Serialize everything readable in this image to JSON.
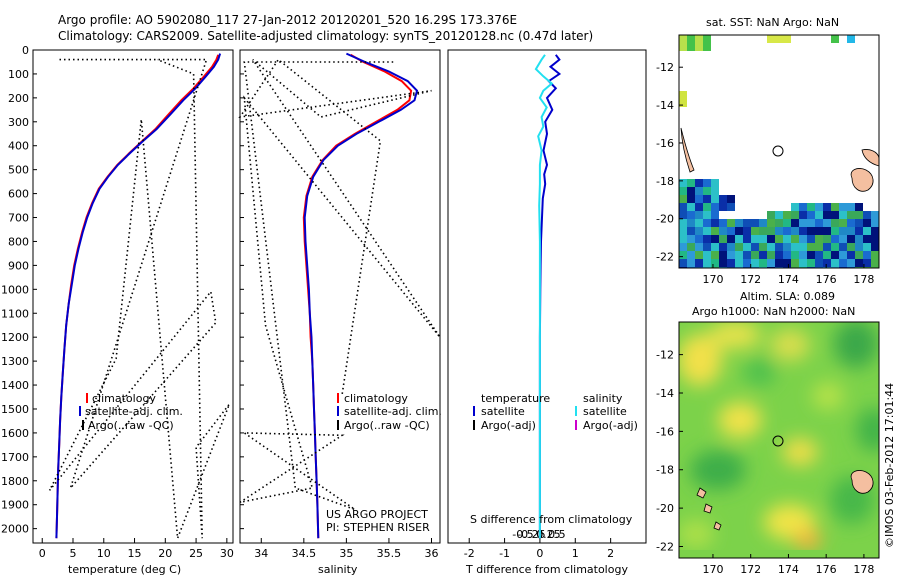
{
  "header": {
    "line1": "Argo profile: AO 5902080_117 27-Jan-2012 20120201_520 16.29S 173.376E",
    "line2": "Climatology: CARS2009. Satellite-adjusted climatology: synTS_20120128.nc (0.47d later)"
  },
  "colors": {
    "climatology": "#ff0000",
    "satellite": "#0000cc",
    "argo": "#000000",
    "t_sat": "#0000cc",
    "s_sat": "#22e0f0",
    "s_argo": "#cc00cc",
    "land": "#f4bfa0"
  },
  "depth_axis": {
    "ylim": [
      0,
      2060
    ],
    "ticks": [
      0,
      100,
      200,
      300,
      400,
      500,
      600,
      700,
      800,
      900,
      1000,
      1100,
      1200,
      1300,
      1400,
      1500,
      1600,
      1700,
      1800,
      1900,
      2000
    ]
  },
  "chart_data": [
    {
      "name": "temperature",
      "type": "line",
      "xlabel": "temperature (deg C)",
      "xlim": [
        -1.5,
        31
      ],
      "xticks": [
        0,
        5,
        10,
        15,
        20,
        25,
        30
      ],
      "ylim": [
        0,
        2060
      ],
      "legend": [
        "climatology",
        "satellite-adj. clim.",
        "Argo(..raw -QC)"
      ],
      "series": [
        {
          "name": "climatology",
          "points": [
            [
              28.6,
              20
            ],
            [
              28.3,
              40
            ],
            [
              27.6,
              70
            ],
            [
              26.3,
              110
            ],
            [
              24.6,
              160
            ],
            [
              22.6,
              210
            ],
            [
              20.5,
              270
            ],
            [
              18.4,
              330
            ],
            [
              16.3,
              380
            ],
            [
              14.2,
              430
            ],
            [
              12.2,
              480
            ],
            [
              10.6,
              530
            ],
            [
              9.2,
              580
            ],
            [
              8.1,
              640
            ],
            [
              7.2,
              700
            ],
            [
              6.5,
              760
            ],
            [
              5.8,
              830
            ],
            [
              5.2,
              900
            ],
            [
              4.7,
              980
            ],
            [
              4.3,
              1060
            ],
            [
              3.9,
              1150
            ],
            [
              3.6,
              1250
            ],
            [
              3.35,
              1350
            ],
            [
              3.1,
              1450
            ],
            [
              2.9,
              1550
            ],
            [
              2.75,
              1650
            ],
            [
              2.6,
              1750
            ],
            [
              2.5,
              1850
            ],
            [
              2.4,
              1950
            ],
            [
              2.3,
              2040
            ]
          ]
        },
        {
          "name": "satellite-adj. clim.",
          "points": [
            [
              28.9,
              15
            ],
            [
              28.6,
              40
            ],
            [
              27.9,
              70
            ],
            [
              26.6,
              110
            ],
            [
              24.9,
              160
            ],
            [
              22.9,
              210
            ],
            [
              20.8,
              270
            ],
            [
              18.6,
              330
            ],
            [
              16.4,
              380
            ],
            [
              14.3,
              430
            ],
            [
              12.3,
              480
            ],
            [
              10.7,
              530
            ],
            [
              9.3,
              580
            ],
            [
              8.2,
              640
            ],
            [
              7.3,
              700
            ],
            [
              6.6,
              760
            ],
            [
              5.9,
              830
            ],
            [
              5.3,
              900
            ],
            [
              4.8,
              980
            ],
            [
              4.3,
              1060
            ],
            [
              3.9,
              1150
            ],
            [
              3.6,
              1250
            ],
            [
              3.35,
              1350
            ],
            [
              3.1,
              1450
            ],
            [
              2.9,
              1550
            ],
            [
              2.75,
              1650
            ],
            [
              2.6,
              1750
            ],
            [
              2.5,
              1850
            ],
            [
              2.4,
              1950
            ],
            [
              2.3,
              2040
            ]
          ]
        },
        {
          "name": "Argo(..raw -QC)",
          "style": "dotted",
          "points": [
            [
              2.8,
              40
            ],
            [
              26.7,
              40
            ],
            [
              4.6,
              1830
            ],
            [
              28.2,
              1140
            ],
            [
              27.4,
              1010
            ],
            [
              1.2,
              1840
            ],
            [
              12.0,
              1290
            ],
            [
              16.1,
              290
            ],
            [
              22.0,
              2040
            ],
            [
              30.4,
              1480
            ],
            [
              25.0,
              1660
            ],
            [
              26.0,
              2040
            ],
            [
              24.6,
              100
            ],
            [
              18.7,
              40
            ]
          ]
        }
      ]
    },
    {
      "name": "salinity",
      "type": "line",
      "xlabel": "salinity",
      "xlim": [
        33.75,
        36.1
      ],
      "xticks": [
        34,
        34.5,
        35,
        35.5,
        36
      ],
      "xticklabels": [
        "34",
        "34.5",
        "35",
        "35.5",
        "36"
      ],
      "ylim": [
        0,
        2060
      ],
      "legend": [
        "climatology",
        "satellite-adj. clim.",
        "Argo(..raw -QC)"
      ],
      "annotation": [
        "US ARGO PROJECT",
        "PI: STEPHEN RISER"
      ],
      "series": [
        {
          "name": "climatology",
          "points": [
            [
              35.05,
              20
            ],
            [
              35.2,
              50
            ],
            [
              35.45,
              90
            ],
            [
              35.65,
              130
            ],
            [
              35.76,
              170
            ],
            [
              35.74,
              210
            ],
            [
              35.6,
              250
            ],
            [
              35.35,
              300
            ],
            [
              35.1,
              350
            ],
            [
              34.88,
              400
            ],
            [
              34.72,
              460
            ],
            [
              34.6,
              530
            ],
            [
              34.53,
              610
            ],
            [
              34.5,
              700
            ],
            [
              34.51,
              800
            ],
            [
              34.53,
              900
            ],
            [
              34.55,
              1000
            ],
            [
              34.57,
              1100
            ],
            [
              34.58,
              1200
            ],
            [
              34.6,
              1300
            ],
            [
              34.61,
              1400
            ],
            [
              34.62,
              1500
            ],
            [
              34.63,
              1600
            ],
            [
              34.64,
              1700
            ],
            [
              34.65,
              1800
            ],
            [
              34.66,
              1900
            ],
            [
              34.67,
              2040
            ]
          ]
        },
        {
          "name": "satellite-adj. clim.",
          "points": [
            [
              35.0,
              15
            ],
            [
              35.22,
              50
            ],
            [
              35.5,
              90
            ],
            [
              35.72,
              130
            ],
            [
              35.83,
              170
            ],
            [
              35.8,
              210
            ],
            [
              35.64,
              250
            ],
            [
              35.38,
              300
            ],
            [
              35.12,
              350
            ],
            [
              34.9,
              400
            ],
            [
              34.73,
              460
            ],
            [
              34.61,
              530
            ],
            [
              34.54,
              610
            ],
            [
              34.51,
              700
            ],
            [
              34.52,
              800
            ],
            [
              34.54,
              900
            ],
            [
              34.56,
              1000
            ],
            [
              34.57,
              1100
            ],
            [
              34.59,
              1200
            ],
            [
              34.6,
              1300
            ],
            [
              34.61,
              1400
            ],
            [
              34.62,
              1500
            ],
            [
              34.63,
              1600
            ],
            [
              34.64,
              1700
            ],
            [
              34.65,
              1800
            ],
            [
              34.66,
              1900
            ],
            [
              34.67,
              2040
            ]
          ]
        },
        {
          "name": "Argo(..raw -QC)",
          "style": "dotted",
          "points": [
            [
              35.55,
              50
            ],
            [
              33.8,
              50
            ],
            [
              34.4,
              1830
            ],
            [
              35.1,
              1920
            ],
            [
              33.8,
              1600
            ],
            [
              34.95,
              1610
            ],
            [
              33.75,
              1890
            ],
            [
              34.6,
              1830
            ],
            [
              34.05,
              1150
            ],
            [
              33.8,
              200
            ],
            [
              36.1,
              1200
            ],
            [
              33.9,
              40
            ],
            [
              34.7,
              280
            ],
            [
              36.0,
              170
            ],
            [
              33.75,
              280
            ],
            [
              34.2,
              40
            ],
            [
              35.4,
              380
            ],
            [
              34.95,
              1440
            ]
          ]
        }
      ]
    },
    {
      "name": "difference",
      "type": "line",
      "xlabel": "T difference from climatology",
      "x2label": "S difference from climatology",
      "xlim": [
        -2.6,
        3.0
      ],
      "xticks": [
        -2,
        -1,
        0,
        1,
        2
      ],
      "x2ticks": [
        -0.5,
        -0.25,
        0,
        0.25,
        0.5
      ],
      "x2ticklabels": [
        "-0.5",
        "-0.25",
        "0",
        "0.25",
        "0.5"
      ],
      "ylim": [
        0,
        2060
      ],
      "legend_temperature": {
        "title": "temperature",
        "items": [
          "satellite",
          "Argo(-adj)"
        ]
      },
      "legend_salinity": {
        "title": "salinity",
        "items": [
          "satellite",
          "Argo(-adj)"
        ]
      },
      "series": [
        {
          "name": "temperature satellite",
          "points": [
            [
              0.45,
              20
            ],
            [
              0.55,
              40
            ],
            [
              0.3,
              70
            ],
            [
              0.55,
              100
            ],
            [
              0.25,
              130
            ],
            [
              0.45,
              160
            ],
            [
              0.2,
              200
            ],
            [
              0.35,
              250
            ],
            [
              0.15,
              300
            ],
            [
              0.2,
              350
            ],
            [
              0.1,
              420
            ],
            [
              0.2,
              480
            ],
            [
              0.12,
              520
            ],
            [
              0.15,
              560
            ],
            [
              0.08,
              620
            ],
            [
              0.06,
              700
            ],
            [
              0.03,
              800
            ],
            [
              0.02,
              900
            ],
            [
              0.01,
              1000
            ],
            [
              0.0,
              1200
            ],
            [
              0.0,
              2040
            ]
          ]
        },
        {
          "name": "salinity satellite",
          "points": [
            [
              0.15,
              20
            ],
            [
              0.05,
              40
            ],
            [
              -0.12,
              80
            ],
            [
              0.1,
              110
            ],
            [
              0.35,
              140
            ],
            [
              0.1,
              170
            ],
            [
              0.0,
              200
            ],
            [
              0.2,
              240
            ],
            [
              0.05,
              280
            ],
            [
              0.1,
              320
            ],
            [
              -0.05,
              360
            ],
            [
              0.05,
              420
            ],
            [
              0.0,
              480
            ],
            [
              0.0,
              560
            ],
            [
              -0.02,
              650
            ],
            [
              0.0,
              800
            ],
            [
              0.0,
              1000
            ],
            [
              0.0,
              2040
            ]
          ]
        }
      ]
    }
  ],
  "maps": {
    "sst": {
      "title": "sat. SST: NaN Argo: NaN",
      "xlim": [
        168.2,
        178.8
      ],
      "ylim": [
        -22.6,
        -10.3
      ],
      "xticks": [
        170,
        172,
        174,
        176,
        178
      ],
      "yticks": [
        -12,
        -14,
        -16,
        -18,
        -20,
        -22
      ],
      "argo_position": [
        173.376,
        -16.29
      ]
    },
    "sla": {
      "title1": "Altim. SLA: 0.089",
      "title2": "Argo h1000: NaN h2000: NaN",
      "xlim": [
        168.2,
        178.8
      ],
      "ylim": [
        -22.6,
        -10.3
      ],
      "xticks": [
        170,
        172,
        174,
        176,
        178
      ],
      "yticks": [
        -12,
        -14,
        -16,
        -18,
        -20,
        -22
      ],
      "argo_position": [
        173.376,
        -16.29
      ]
    }
  },
  "footer": {
    "stamp": "©IMOS 03-Feb-2012 17:01:44"
  }
}
